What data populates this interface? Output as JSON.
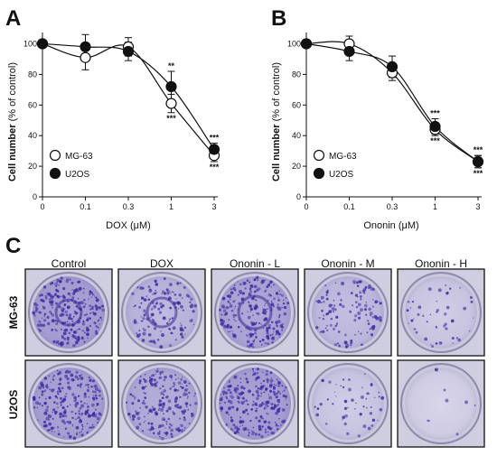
{
  "panels": {
    "a": "A",
    "b": "B",
    "c": "C"
  },
  "chart_data": [
    {
      "type": "line",
      "panel": "A",
      "xlabel": "DOX (μM)",
      "ylabel_bold": "Cell number",
      "ylabel_rest": " (% of control)",
      "x_tick_labels": [
        "0",
        "0.1",
        "0.3",
        "1",
        "3"
      ],
      "y_ticks": [
        0,
        20,
        40,
        60,
        80,
        100
      ],
      "ylim": [
        0,
        105
      ],
      "grid": false,
      "legend_position": "bottom-left",
      "series": [
        {
          "name": "MG-63",
          "marker": "open-circle",
          "values": [
            100,
            91,
            98,
            61,
            27
          ],
          "errors": [
            2,
            8,
            6,
            6,
            4
          ],
          "significance": [
            "",
            "",
            "",
            "***",
            "***"
          ]
        },
        {
          "name": "U2OS",
          "marker": "filled-circle",
          "values": [
            100,
            98,
            95,
            72,
            31
          ],
          "errors": [
            2,
            8,
            6,
            10,
            4
          ],
          "significance": [
            "",
            "",
            "",
            "**",
            "***"
          ]
        }
      ]
    },
    {
      "type": "line",
      "panel": "B",
      "xlabel": "Ononin (μM)",
      "ylabel_bold": "Cell number",
      "ylabel_rest": " (% of control)",
      "x_tick_labels": [
        "0",
        "0.1",
        "0.3",
        "1",
        "3"
      ],
      "y_ticks": [
        0,
        20,
        40,
        60,
        80,
        100
      ],
      "ylim": [
        0,
        105
      ],
      "grid": false,
      "legend_position": "bottom-left",
      "series": [
        {
          "name": "MG-63",
          "marker": "open-circle",
          "values": [
            100,
            100,
            81,
            44,
            23
          ],
          "errors": [
            2,
            5,
            5,
            4,
            4
          ],
          "significance": [
            "",
            "",
            "",
            "***",
            "***"
          ]
        },
        {
          "name": "U2OS",
          "marker": "filled-circle",
          "values": [
            100,
            95,
            85,
            46,
            23
          ],
          "errors": [
            2,
            6,
            7,
            5,
            4
          ],
          "significance": [
            "",
            "",
            "",
            "***",
            "***"
          ]
        }
      ]
    }
  ],
  "colony_panel": {
    "columns": [
      "Control",
      "DOX",
      "Ononin - L",
      "Ononin - M",
      "Ononin - H"
    ],
    "rows": [
      "MG-63",
      "U2OS"
    ],
    "colony_density": [
      [
        0.95,
        0.55,
        0.85,
        0.45,
        0.18
      ],
      [
        0.9,
        0.75,
        0.95,
        0.2,
        0.03
      ]
    ]
  }
}
